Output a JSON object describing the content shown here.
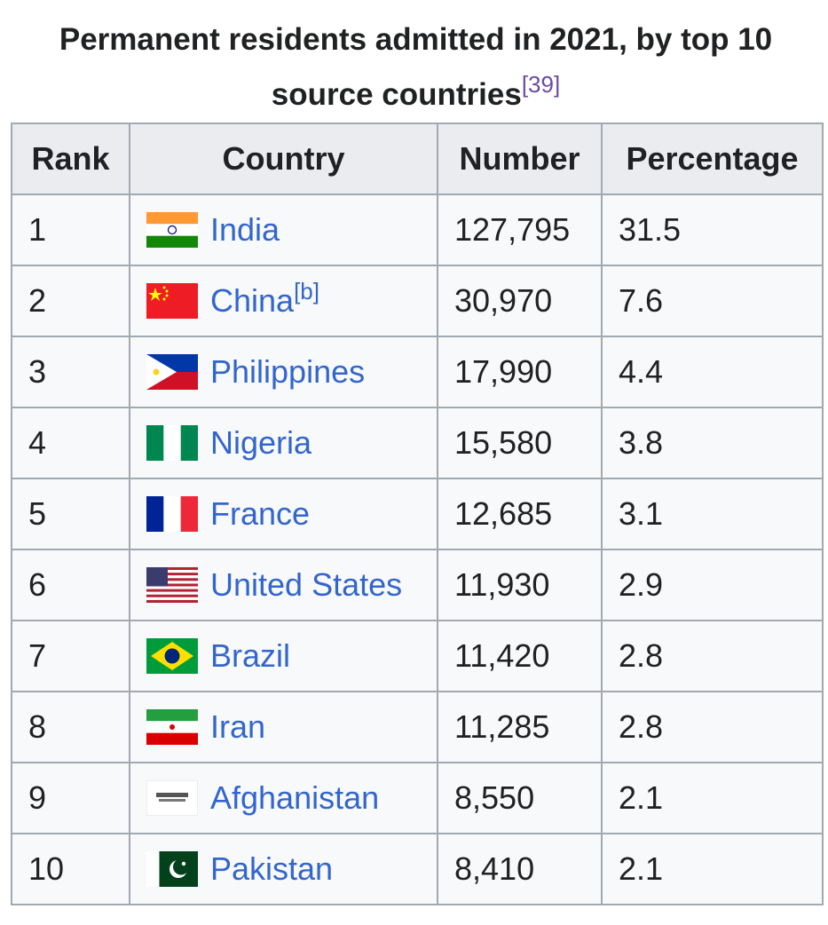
{
  "caption": {
    "title": "Permanent residents admitted in 2021, by top 10 source countries",
    "ref": "[39]"
  },
  "table": {
    "header": [
      "Rank",
      "Country",
      "Number",
      "Percentage"
    ],
    "rows": [
      {
        "rank": "1",
        "country": "India",
        "number": "127,795",
        "percentage": "31.5"
      },
      {
        "rank": "2",
        "country": "China",
        "note": "[b]",
        "number": "30,970",
        "percentage": "7.6"
      },
      {
        "rank": "3",
        "country": "Philippines",
        "number": "17,990",
        "percentage": "4.4"
      },
      {
        "rank": "4",
        "country": "Nigeria",
        "number": "15,580",
        "percentage": "3.8"
      },
      {
        "rank": "5",
        "country": "France",
        "number": "12,685",
        "percentage": "3.1"
      },
      {
        "rank": "6",
        "country": "United States",
        "number": "11,930",
        "percentage": "2.9"
      },
      {
        "rank": "7",
        "country": "Brazil",
        "number": "11,420",
        "percentage": "2.8"
      },
      {
        "rank": "8",
        "country": "Iran",
        "number": "11,285",
        "percentage": "2.8"
      },
      {
        "rank": "9",
        "country": "Afghanistan",
        "number": "8,550",
        "percentage": "2.1"
      },
      {
        "rank": "10",
        "country": "Pakistan",
        "number": "8,410",
        "percentage": "2.1"
      }
    ]
  }
}
